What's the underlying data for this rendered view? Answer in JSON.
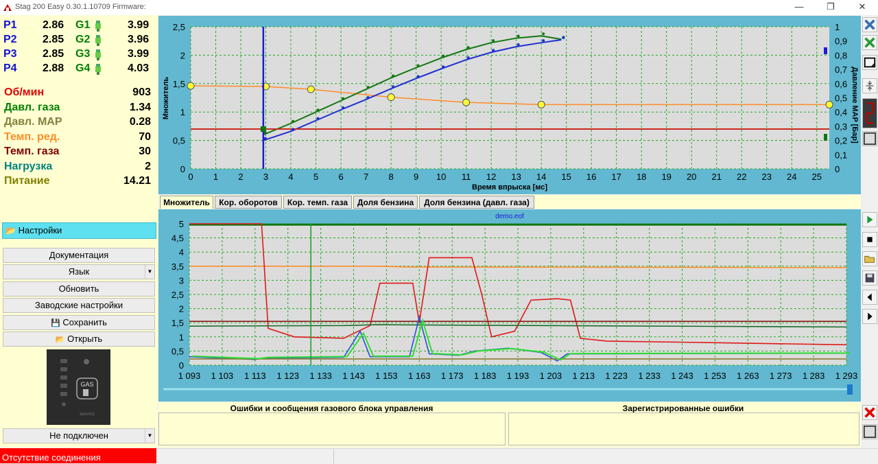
{
  "window": {
    "title": "Stag 200 Easy 0.30.1.10709 Firmware:",
    "minimize": "—",
    "restore": "❐",
    "close": "✕"
  },
  "colors": {
    "panel_bg": "#ffffd2",
    "chart_frame": "#62b8d0",
    "plot_bg": "#dcdcdc",
    "grid": "#22aa22",
    "gas_curve": "#117711",
    "petrol_curve": "#1f2fd0",
    "orange": "#ff8c28",
    "red": "#cc2a1e",
    "status_red": "#ff0000"
  },
  "injectors": [
    {
      "p_label": "P1",
      "p_value": "2.86",
      "g_label": "G1",
      "g_value": "3.99"
    },
    {
      "p_label": "P2",
      "p_value": "2.85",
      "g_label": "G2",
      "g_value": "3.96"
    },
    {
      "p_label": "P3",
      "p_value": "2.85",
      "g_label": "G3",
      "g_value": "3.99"
    },
    {
      "p_label": "P4",
      "p_value": "2.88",
      "g_label": "G4",
      "g_value": "4.03"
    }
  ],
  "sensors": [
    {
      "label": "Об/мин",
      "value": "903",
      "color": "#e00000"
    },
    {
      "label": "Давл. газа",
      "value": "1.34",
      "color": "#008000"
    },
    {
      "label": "Давл. MAP",
      "value": "0.28",
      "color": "#808040"
    },
    {
      "label": "Темп. ред.",
      "value": "70",
      "color": "#ff8c28"
    },
    {
      "label": "Темп. газа",
      "value": "30",
      "color": "#800000"
    },
    {
      "label": "Нагрузка",
      "value": "2",
      "color": "#008080"
    },
    {
      "label": "Питание",
      "value": "14.21",
      "color": "#808000"
    }
  ],
  "menu": {
    "settings": "Настройки",
    "documentation": "Документация",
    "language": "Язык",
    "update": "Обновить",
    "factory": "Заводские настройки",
    "save": "Сохранить",
    "open": "Открыть",
    "connection": "Не подключен"
  },
  "device": {
    "gas_label": "GAS",
    "service_label": "SERVICE"
  },
  "status": {
    "connection": "Отсутствие соединения"
  },
  "top_chart": {
    "ylabel": "Множитель",
    "xlabel": "Время впрыска [мс]",
    "y2label": "Давление MAP [Бар]",
    "x_ticks": [
      "0",
      "1",
      "2",
      "3",
      "4",
      "5",
      "6",
      "7",
      "8",
      "9",
      "10",
      "11",
      "12",
      "13",
      "14",
      "15",
      "16",
      "17",
      "18",
      "19",
      "20",
      "21",
      "22",
      "23",
      "24",
      "25"
    ],
    "y_ticks": [
      "0",
      "0,5",
      "1",
      "1,5",
      "2",
      "2,5"
    ],
    "y2_ticks": [
      "0",
      "0,1",
      "0,2",
      "0,3",
      "0,4",
      "0,5",
      "0,6",
      "0,7",
      "0,8",
      "0,9",
      "1"
    ]
  },
  "tabs": [
    "Множитель",
    "Кор. оборотов",
    "Кор. темп. газа",
    "Доля бензина",
    "Доля бензина (давл. газа)"
  ],
  "bottom_chart": {
    "file": "demo.eof",
    "y_ticks": [
      "0",
      "0,5",
      "1",
      "1,5",
      "2",
      "2,5",
      "3",
      "3,5",
      "4",
      "4,5",
      "5"
    ],
    "x_ticks": [
      "1 093",
      "1 103",
      "1 113",
      "1 123",
      "1 133",
      "1 143",
      "1 153",
      "1 163",
      "1 173",
      "1 183",
      "1 193",
      "1 203",
      "1 213",
      "1 223",
      "1 233",
      "1 243",
      "1 253",
      "1 263",
      "1 273",
      "1 283",
      "1 293"
    ]
  },
  "errors": {
    "left_title": "Ошибки и сообщения газового блока управления",
    "right_title": "Зарегистрированные ошибки"
  },
  "chart_data": [
    {
      "type": "line",
      "title": "",
      "xlabel": "Время впрыска [мс]",
      "ylabel": "Множитель",
      "y2label": "Давление MAP [Бар]",
      "xlim": [
        0,
        25.5
      ],
      "ylim": [
        0,
        2.5
      ],
      "y2lim": [
        0,
        1
      ],
      "series": [
        {
          "x": [
            0,
            3,
            4.8,
            8,
            11,
            14,
            25.5
          ],
          "values": [
            1.46,
            1.45,
            1.4,
            1.26,
            1.17,
            1.13,
            1.13
          ]
        },
        {
          "x": [
            2.9,
            4,
            5,
            6,
            7,
            8,
            9,
            10,
            11,
            12,
            13,
            14,
            14.8
          ],
          "values": [
            0.6,
            0.8,
            1.0,
            1.2,
            1.4,
            1.6,
            1.78,
            1.95,
            2.1,
            2.22,
            2.3,
            2.34,
            2.28
          ]
        },
        {
          "x": [
            2.9,
            4,
            5,
            6,
            7,
            8,
            9,
            10,
            11,
            12,
            13,
            14,
            14.8
          ],
          "values": [
            0.5,
            0.66,
            0.85,
            1.04,
            1.22,
            1.41,
            1.59,
            1.76,
            1.92,
            2.05,
            2.15,
            2.22,
            2.27
          ]
        },
        {
          "x": [
            0,
            25.5
          ],
          "values": [
            0.7,
            0.7
          ]
        }
      ],
      "cursor_x": 2.9
    },
    {
      "type": "line",
      "title": "demo.eof",
      "xlim": [
        1093,
        1293
      ],
      "ylim": [
        0,
        5
      ],
      "series": [
        {
          "x": [
            1093,
            1293
          ],
          "values": [
            4.97,
            4.97
          ]
        },
        {
          "x": [
            1093,
            1150,
            1160,
            1293
          ],
          "values": [
            3.5,
            3.5,
            3.47,
            3.45
          ]
        },
        {
          "x": [
            1093,
            1115,
            1115,
            1117,
            1125,
            1140,
            1148,
            1151,
            1161,
            1163,
            1166,
            1179,
            1182,
            1185,
            1192,
            1197,
            1205,
            1209,
            1212,
            1220,
            1250,
            1293
          ],
          "values": [
            5,
            5,
            5,
            1.3,
            1.0,
            0.95,
            1.4,
            2.9,
            2.9,
            1.5,
            3.8,
            3.8,
            2.5,
            1.0,
            1.2,
            2.3,
            2.35,
            2.3,
            0.95,
            0.85,
            0.8,
            0.72
          ]
        },
        {
          "x": [
            1093,
            1293
          ],
          "values": [
            1.55,
            1.55
          ]
        },
        {
          "x": [
            1093,
            1140,
            1150,
            1200,
            1293
          ],
          "values": [
            1.38,
            1.4,
            1.43,
            1.4,
            1.35
          ]
        },
        {
          "x": [
            1093,
            1113,
            1116,
            1140,
            1145,
            1148,
            1160,
            1163,
            1166,
            1175,
            1180,
            1190,
            1200,
            1205,
            1208,
            1293
          ],
          "values": [
            0.3,
            0.2,
            0.25,
            0.28,
            1.2,
            0.3,
            0.3,
            1.7,
            0.4,
            0.35,
            0.5,
            0.6,
            0.45,
            0.15,
            0.4,
            0.42
          ]
        },
        {
          "x": [
            1093,
            1293
          ],
          "values": [
            0.22,
            0.22
          ]
        }
      ],
      "cursor_x": 1130
    }
  ]
}
